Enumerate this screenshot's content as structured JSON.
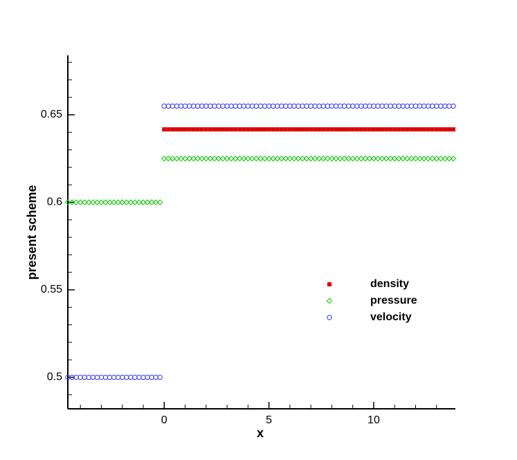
{
  "chart_data": {
    "type": "scatter",
    "xlabel": "x",
    "ylabel": "present scheme",
    "xlim": [
      -4.6,
      13.9
    ],
    "ylim": [
      0.482,
      0.684
    ],
    "xticks": [
      0,
      5,
      10
    ],
    "yticks": [
      0.5,
      0.55,
      0.6,
      0.65
    ],
    "xminorticks": [
      -4,
      -3,
      -2,
      -1,
      1,
      2,
      3,
      4,
      6,
      7,
      8,
      9,
      11,
      12,
      13
    ],
    "yminorticks": [
      0.49,
      0.51,
      0.52,
      0.53,
      0.54,
      0.56,
      0.57,
      0.58,
      0.59,
      0.61,
      0.62,
      0.63,
      0.64,
      0.66,
      0.67,
      0.68
    ],
    "x": [
      -4.6,
      -4.4,
      -4.2,
      -4,
      -3.8,
      -3.6,
      -3.4,
      -3.2,
      -3,
      -2.8,
      -2.6,
      -2.4,
      -2.2,
      -2,
      -1.8,
      -1.6,
      -1.4,
      -1.2,
      -1,
      -0.8,
      -0.6,
      -0.4,
      -0.2,
      0,
      0.2,
      0.4,
      0.6,
      0.8,
      1,
      1.2,
      1.4,
      1.6,
      1.8,
      2,
      2.2,
      2.4,
      2.6,
      2.8,
      3,
      3.2,
      3.4,
      3.6,
      3.8,
      4,
      4.2,
      4.4,
      4.6,
      4.8,
      5,
      5.2,
      5.4,
      5.6,
      5.8,
      6,
      6.2,
      6.4,
      6.6,
      6.8,
      7,
      7.2,
      7.4,
      7.6,
      7.8,
      8,
      8.2,
      8.4,
      8.6,
      8.8,
      9,
      9.2,
      9.4,
      9.6,
      9.8,
      10,
      10.2,
      10.4,
      10.6,
      10.8,
      11,
      11.2,
      11.4,
      11.6,
      11.8,
      12,
      12.2,
      12.4,
      12.6,
      12.8,
      13,
      13.2,
      13.4,
      13.6,
      13.8
    ],
    "series": [
      {
        "name": "density",
        "color": "#dd0000",
        "marker": "square",
        "values": [
          null,
          null,
          null,
          null,
          null,
          null,
          null,
          null,
          null,
          null,
          null,
          null,
          null,
          null,
          null,
          null,
          null,
          null,
          null,
          null,
          null,
          null,
          null,
          0.6417,
          0.6417,
          0.6417,
          0.6417,
          0.6417,
          0.6417,
          0.6417,
          0.6417,
          0.6417,
          0.6417,
          0.6417,
          0.6417,
          0.6417,
          0.6417,
          0.6417,
          0.6417,
          0.6417,
          0.6417,
          0.6417,
          0.6417,
          0.6417,
          0.6417,
          0.6417,
          0.6417,
          0.6417,
          0.6417,
          0.6417,
          0.6417,
          0.6417,
          0.6417,
          0.6417,
          0.6417,
          0.6417,
          0.6417,
          0.6417,
          0.6417,
          0.6417,
          0.6417,
          0.6417,
          0.6417,
          0.6417,
          0.6417,
          0.6417,
          0.6417,
          0.6417,
          0.6417,
          0.6417,
          0.6417,
          0.6417,
          0.6417,
          0.6417,
          0.6417,
          0.6417,
          0.6417,
          0.6417,
          0.6417,
          0.6417,
          0.6417,
          0.6417,
          0.6417,
          0.6417,
          0.6417,
          0.6417,
          0.6417,
          0.6417,
          0.6417,
          0.6417,
          0.6417,
          0.6417,
          0.6417
        ]
      },
      {
        "name": "pressure",
        "color": "#00cc00",
        "marker": "diamond",
        "values": [
          0.6,
          0.6,
          0.6,
          0.6,
          0.6,
          0.6,
          0.6,
          0.6,
          0.6,
          0.6,
          0.6,
          0.6,
          0.6,
          0.6,
          0.6,
          0.6,
          0.6,
          0.6,
          0.6,
          0.6,
          0.6,
          0.6,
          0.6,
          0.625,
          0.625,
          0.625,
          0.625,
          0.625,
          0.625,
          0.625,
          0.625,
          0.625,
          0.625,
          0.625,
          0.625,
          0.625,
          0.625,
          0.625,
          0.625,
          0.625,
          0.625,
          0.625,
          0.625,
          0.625,
          0.625,
          0.625,
          0.625,
          0.625,
          0.625,
          0.625,
          0.625,
          0.625,
          0.625,
          0.625,
          0.625,
          0.625,
          0.625,
          0.625,
          0.625,
          0.625,
          0.625,
          0.625,
          0.625,
          0.625,
          0.625,
          0.625,
          0.625,
          0.625,
          0.625,
          0.625,
          0.625,
          0.625,
          0.625,
          0.625,
          0.625,
          0.625,
          0.625,
          0.625,
          0.625,
          0.625,
          0.625,
          0.625,
          0.625,
          0.625,
          0.625,
          0.625,
          0.625,
          0.625,
          0.625,
          0.625,
          0.625,
          0.625,
          0.625
        ]
      },
      {
        "name": "velocity",
        "color": "#3333ff",
        "marker": "circle",
        "values": [
          0.5,
          0.5,
          0.5,
          0.5,
          0.5,
          0.5,
          0.5,
          0.5,
          0.5,
          0.5,
          0.5,
          0.5,
          0.5,
          0.5,
          0.5,
          0.5,
          0.5,
          0.5,
          0.5,
          0.5,
          0.5,
          0.5,
          0.5,
          0.655,
          0.655,
          0.655,
          0.655,
          0.655,
          0.655,
          0.655,
          0.655,
          0.655,
          0.655,
          0.655,
          0.655,
          0.655,
          0.655,
          0.655,
          0.655,
          0.655,
          0.655,
          0.655,
          0.655,
          0.655,
          0.655,
          0.655,
          0.655,
          0.655,
          0.655,
          0.655,
          0.655,
          0.655,
          0.655,
          0.655,
          0.655,
          0.655,
          0.655,
          0.655,
          0.655,
          0.655,
          0.655,
          0.655,
          0.655,
          0.655,
          0.655,
          0.655,
          0.655,
          0.655,
          0.655,
          0.655,
          0.655,
          0.655,
          0.655,
          0.655,
          0.655,
          0.655,
          0.655,
          0.655,
          0.655,
          0.655,
          0.655,
          0.655,
          0.655,
          0.655,
          0.655,
          0.655,
          0.655,
          0.655,
          0.655,
          0.655,
          0.655,
          0.655,
          0.655
        ]
      }
    ]
  }
}
